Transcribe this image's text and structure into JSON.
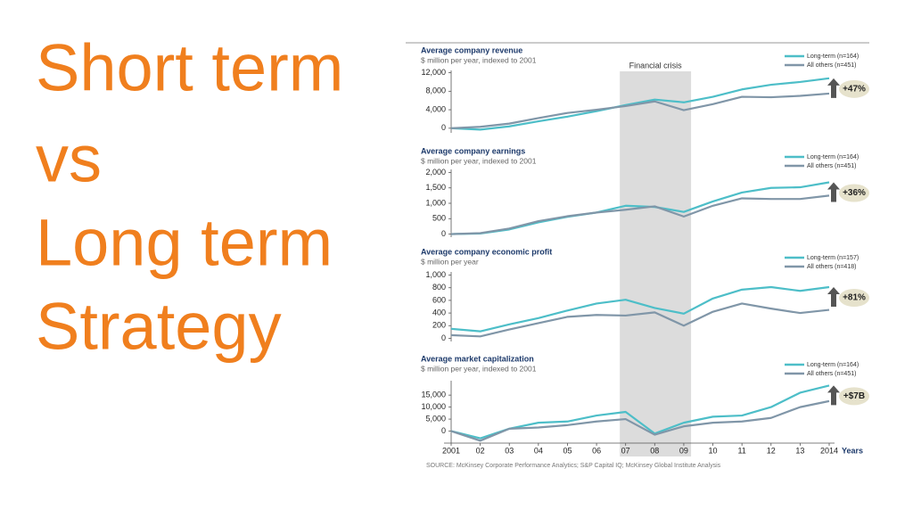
{
  "heading_lines": [
    "Short term",
    "vs",
    "Long term",
    "Strategy"
  ],
  "crisis_label": "Financial crisis",
  "crisis_from": "07",
  "crisis_to": "09",
  "source": "SOURCE: McKinsey Corporate Performance Analytics; S&P Capital IQ; McKinsey Global Institute Analysis",
  "chart_data": [
    {
      "type": "line",
      "title": "Average company revenue",
      "subtitle": "$ million per year, indexed to 2001",
      "ylim": [
        -1000,
        12500
      ],
      "yticks": [
        0,
        {
          "value": 4000,
          "label": "4,000"
        },
        {
          "value": 8000,
          "label": "8,000"
        },
        {
          "value": 12000,
          "label": "12,000"
        }
      ],
      "grid": false,
      "badge": "+47%",
      "series": [
        {
          "name": "Long-term (n=164)",
          "color": "#4dbec8",
          "values": [
            0,
            -300,
            400,
            1500,
            2500,
            3700,
            5000,
            6200,
            5600,
            6800,
            8400,
            9400,
            10000,
            10800
          ]
        },
        {
          "name": "All others (n=451)",
          "color": "#8096a8",
          "values": [
            0,
            300,
            1000,
            2200,
            3300,
            4000,
            4800,
            5800,
            3900,
            5200,
            6800,
            6700,
            7000,
            7500
          ]
        }
      ]
    },
    {
      "type": "line",
      "title": "Average company earnings",
      "subtitle": "$ million per year, indexed to 2001",
      "ylim": [
        -100,
        2100
      ],
      "yticks": [
        0,
        500,
        {
          "value": 1000,
          "label": "1,000"
        },
        {
          "value": 1500,
          "label": "1,500"
        },
        {
          "value": 2000,
          "label": "2,000"
        }
      ],
      "grid": false,
      "badge": "+36%",
      "series": [
        {
          "name": "Long-term (n=164)",
          "color": "#4dbec8",
          "values": [
            0,
            20,
            150,
            380,
            560,
            700,
            920,
            880,
            720,
            1060,
            1350,
            1500,
            1520,
            1680
          ]
        },
        {
          "name": "All others (n=451)",
          "color": "#8096a8",
          "values": [
            0,
            30,
            180,
            420,
            580,
            700,
            790,
            900,
            570,
            920,
            1160,
            1140,
            1140,
            1250
          ]
        }
      ]
    },
    {
      "type": "line",
      "title": "Average company economic profit",
      "subtitle": "$ million per year",
      "ylim": [
        -50,
        1050
      ],
      "yticks": [
        0,
        200,
        400,
        600,
        800,
        {
          "value": 1000,
          "label": "1,000"
        }
      ],
      "grid": false,
      "badge": "+81%",
      "series": [
        {
          "name": "Long-term (n=157)",
          "color": "#4dbec8",
          "values": [
            150,
            110,
            220,
            320,
            440,
            550,
            610,
            480,
            390,
            630,
            770,
            810,
            750,
            810
          ]
        },
        {
          "name": "All others (n=418)",
          "color": "#8096a8",
          "values": [
            50,
            30,
            140,
            240,
            340,
            370,
            360,
            410,
            200,
            420,
            550,
            470,
            400,
            450
          ]
        }
      ]
    },
    {
      "type": "line",
      "title": "Average market capitalization",
      "subtitle": "$ million per year, indexed to 2001",
      "categories": [
        "2001",
        "02",
        "03",
        "04",
        "05",
        "06",
        "07",
        "08",
        "09",
        "10",
        "11",
        "12",
        "13",
        "2014"
      ],
      "x_label": "Years",
      "ylim": [
        -5000,
        21000
      ],
      "yticks": [
        0,
        {
          "value": 5000,
          "label": "5,000"
        },
        {
          "value": 10000,
          "label": "10,000"
        },
        {
          "value": 15000,
          "label": "15,000"
        }
      ],
      "grid": false,
      "badge": "+$7B",
      "series": [
        {
          "name": "Long-term (n=164)",
          "color": "#4dbec8",
          "values": [
            0,
            -3000,
            1000,
            3500,
            4000,
            6500,
            8000,
            -1000,
            3500,
            6000,
            6500,
            10000,
            16000,
            19000
          ]
        },
        {
          "name": "All others (n=451)",
          "color": "#8096a8",
          "values": [
            0,
            -4000,
            1000,
            1500,
            2500,
            4000,
            5000,
            -1500,
            2000,
            3500,
            4000,
            5500,
            10000,
            12500
          ]
        }
      ]
    }
  ]
}
